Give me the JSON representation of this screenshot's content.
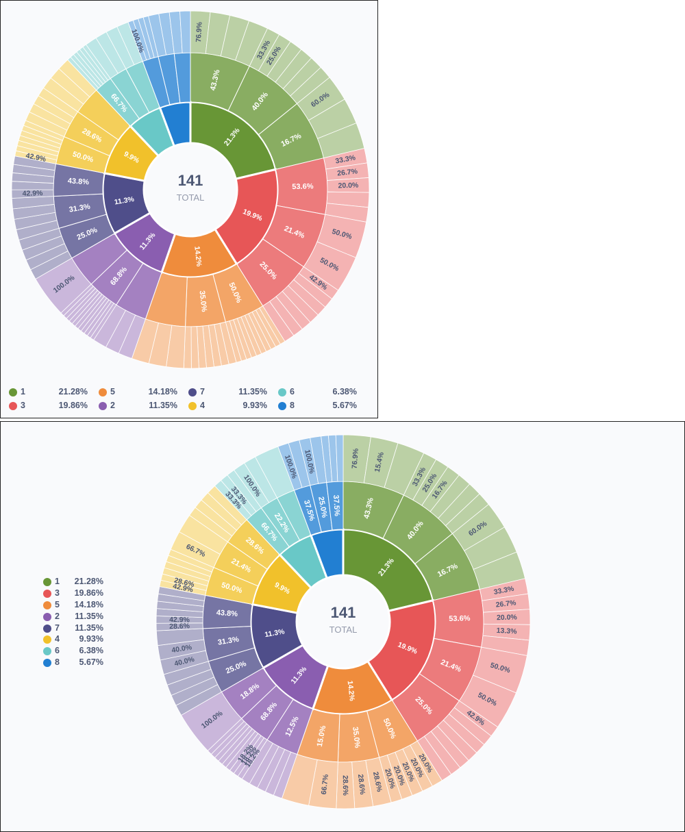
{
  "chart_data": [
    {
      "type": "sunburst",
      "total_value": "141",
      "total_caption": "TOTAL",
      "legend_placement": "bottom",
      "categories": [
        {
          "label": "1",
          "percent": "21.28%",
          "center_label": "21.3%",
          "color": "#689636",
          "level2": [
            {
              "label": "43.3%",
              "level3": [
                "76.9%",
                "",
                "",
                ""
              ]
            },
            {
              "label": "40.0%",
              "level3": [
                "33.3%",
                "25.0%",
                "",
                "",
                "",
                ""
              ]
            },
            {
              "label": "16.7%",
              "level3": [
                "60.0%",
                "",
                ""
              ]
            }
          ]
        },
        {
          "label": "3",
          "percent": "19.86%",
          "center_label": "19.9%",
          "color": "#e75657",
          "level2": [
            {
              "label": "53.6%",
              "level3": [
                "33.3%",
                "26.7%",
                "20.0%",
                "",
                ""
              ]
            },
            {
              "label": "21.4%",
              "level3": [
                "50.0%",
                "50.0%"
              ]
            },
            {
              "label": "25.0%",
              "level3": [
                "42.9%",
                "",
                "",
                "",
                "",
                "",
                ""
              ]
            }
          ]
        },
        {
          "label": "5",
          "percent": "14.18%",
          "center_label": "14.2%",
          "color": "#ef8c3c",
          "level2": [
            {
              "label": "50.0%",
              "level3": [
                "",
                "",
                "",
                "",
                "",
                "",
                "",
                "",
                "",
                ""
              ]
            },
            {
              "label": "35.0%",
              "level3": [
                "",
                "",
                "",
                "",
                "",
                "",
                ""
              ]
            },
            {
              "label": "",
              "level3": [
                "",
                "",
                ""
              ]
            }
          ]
        },
        {
          "label": "2",
          "percent": "11.35%",
          "center_label": "11.3%",
          "color": "#8a5eb0",
          "level2": [
            {
              "label": "",
              "level3": [
                "",
                "",
                ""
              ]
            },
            {
              "label": "68.8%",
              "level3": [
                "",
                "",
                "",
                "",
                "",
                "",
                "",
                "",
                "",
                "",
                ""
              ]
            },
            {
              "label": "",
              "level3": [
                "100.0%"
              ]
            }
          ]
        },
        {
          "label": "7",
          "percent": "11.35%",
          "center_label": "11.3%",
          "color": "#4f4e8a",
          "level2": [
            {
              "label": "25.0%",
              "level3": [
                "",
                "",
                "",
                ""
              ]
            },
            {
              "label": "31.3%",
              "level3": [
                "",
                "",
                "",
                ""
              ]
            },
            {
              "label": "43.8%",
              "level3": [
                "42.9%",
                "",
                "",
                "",
                ""
              ]
            }
          ]
        },
        {
          "label": "4",
          "percent": "9.93%",
          "center_label": "9.9%",
          "color": "#f1c12b",
          "level2": [
            {
              "label": "50.0%",
              "level3": [
                "42.9%",
                "",
                "",
                "",
                "",
                "",
                ""
              ]
            },
            {
              "label": "28.6%",
              "level3": [
                "",
                "",
                "",
                ""
              ]
            },
            {
              "label": "",
              "level3": [
                "",
                "",
                ""
              ]
            }
          ]
        },
        {
          "label": "6",
          "percent": "6.38%",
          "center_label": "",
          "color": "#69c8c7",
          "level2": [
            {
              "label": "66.7%",
              "level3": [
                "",
                "",
                "",
                "",
                "",
                ""
              ]
            },
            {
              "label": "",
              "level3": [
                "",
                ""
              ]
            },
            {
              "label": "",
              "level3": [
                "",
                ""
              ]
            }
          ]
        },
        {
          "label": "8",
          "percent": "5.67%",
          "center_label": "",
          "color": "#227fd2",
          "level2": [
            {
              "label": "",
              "level3": [
                "100.0%",
                "",
                "",
                ""
              ]
            },
            {
              "label": "",
              "level3": [
                "",
                ""
              ]
            },
            {
              "label": "",
              "level3": [
                "",
                ""
              ]
            }
          ]
        }
      ]
    },
    {
      "type": "sunburst",
      "total_value": "141",
      "total_caption": "TOTAL",
      "legend_placement": "left",
      "categories": [
        {
          "label": "1",
          "percent": "21.28%",
          "center_label": "21.3%",
          "color": "#689636",
          "level2": [
            {
              "label": "43.3%",
              "level3": [
                "76.9%",
                "15.4%",
                ""
              ]
            },
            {
              "label": "40.0%",
              "level3": [
                "33.3%",
                "25.0%",
                "16.7%",
                "",
                "",
                ""
              ]
            },
            {
              "label": "16.7%",
              "level3": [
                "60.0%",
                "",
                ""
              ]
            }
          ]
        },
        {
          "label": "3",
          "percent": "19.86%",
          "center_label": "19.9%",
          "color": "#e75657",
          "level2": [
            {
              "label": "53.6%",
              "level3": [
                "33.3%",
                "26.7%",
                "20.0%",
                "13.3%",
                ""
              ]
            },
            {
              "label": "21.4%",
              "level3": [
                "50.0%",
                "50.0%"
              ]
            },
            {
              "label": "25.0%",
              "level3": [
                "42.9%",
                "",
                "",
                "",
                "",
                "",
                ""
              ]
            }
          ]
        },
        {
          "label": "5",
          "percent": "14.18%",
          "center_label": "14.2%",
          "color": "#ef8c3c",
          "level2": [
            {
              "label": "50.0%",
              "level3": [
                "20.0%",
                "20.0%",
                "20.0%",
                "20.0%",
                "20.0%"
              ]
            },
            {
              "label": "35.0%",
              "level3": [
                "28.6%",
                "28.6%",
                "28.6%"
              ]
            },
            {
              "label": "15.0%",
              "level3": [
                "66.7%",
                ""
              ]
            }
          ]
        },
        {
          "label": "2",
          "percent": "11.35%",
          "center_label": "11.3%",
          "color": "#8a5eb0",
          "level2": [
            {
              "label": "12.5%",
              "level3": [
                "",
                "",
                "",
                "",
                ""
              ]
            },
            {
              "label": "68.8%",
              "level3": [
                "18.2%",
                "18.2%",
                "18.2%",
                "",
                "",
                "",
                "",
                "",
                ""
              ]
            },
            {
              "label": "18.8%",
              "level3": [
                "100.0%"
              ]
            }
          ]
        },
        {
          "label": "7",
          "percent": "11.35%",
          "center_label": "11.3%",
          "color": "#4f4e8a",
          "level2": [
            {
              "label": "25.0%",
              "level3": [
                "",
                "",
                "",
                ""
              ]
            },
            {
              "label": "31.3%",
              "level3": [
                "40.0%",
                "40.0%",
                ""
              ]
            },
            {
              "label": "43.8%",
              "level3": [
                "28.6%",
                "42.9%",
                "",
                "",
                "",
                ""
              ]
            }
          ]
        },
        {
          "label": "4",
          "percent": "9.93%",
          "center_label": "9.9%",
          "color": "#f1c12b",
          "level2": [
            {
              "label": "50.0%",
              "level3": [
                "42.9%",
                "28.6%",
                "",
                "",
                "",
                ""
              ]
            },
            {
              "label": "21.4%",
              "level3": [
                "66.7%",
                ""
              ]
            },
            {
              "label": "28.6%",
              "level3": [
                "",
                "",
                "",
                ""
              ]
            }
          ]
        },
        {
          "label": "6",
          "percent": "6.38%",
          "center_label": "",
          "color": "#69c8c7",
          "level2": [
            {
              "label": "66.7%",
              "level3": [
                "33.3%",
                "33.3%",
                ""
              ]
            },
            {
              "label": "22.2%",
              "level3": [
                "100.0%",
                ""
              ]
            },
            {
              "label": "",
              "level3": [
                ""
              ]
            }
          ]
        },
        {
          "label": "8",
          "percent": "5.67%",
          "center_label": "",
          "color": "#227fd2",
          "level2": [
            {
              "label": "37.5%",
              "level3": [
                "100.0%",
                ""
              ]
            },
            {
              "label": "25.0%",
              "level3": [
                "100.0%",
                ""
              ]
            },
            {
              "label": "37.5%",
              "level3": [
                "",
                "",
                ""
              ]
            }
          ]
        }
      ]
    }
  ]
}
